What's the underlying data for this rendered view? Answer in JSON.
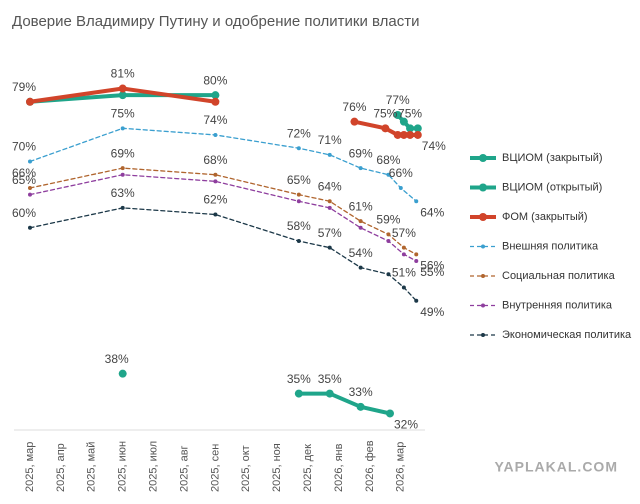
{
  "chart_data": {
    "type": "line",
    "title": "Доверие Владимиру Путину и одобрение политики власти",
    "watermark": "YAPLAKAL.COM",
    "categories": [
      "2025, мар",
      "2025, апр",
      "2025, май",
      "2025, июн",
      "2025, июл",
      "2025, авг",
      "2025, сен",
      "2025, окт",
      "2025, ноя",
      "2025, дек",
      "2026, янв",
      "2026, фев",
      "2026, мар"
    ],
    "ylim": [
      28,
      85
    ],
    "series": [
      {
        "name": "ВЦИОМ (закрытый)",
        "color": "#1fa58a",
        "style": "solid",
        "x": [
          0,
          3,
          6,
          null,
          11.9,
          12.1,
          12.3,
          12.55
        ],
        "values": [
          79,
          80,
          80,
          null,
          77,
          76,
          75,
          75
        ],
        "value_labels": [
          null,
          null,
          "80%",
          null,
          "77%",
          null,
          "75%",
          null
        ]
      },
      {
        "name": "ВЦИОМ (открытый)",
        "color": "#1fa58a",
        "style": "solid",
        "x": [
          3,
          null,
          8.7,
          9.7,
          10.7,
          11.65
        ],
        "values": [
          38,
          null,
          35,
          35,
          33,
          32
        ],
        "value_labels": [
          "38%",
          null,
          "35%",
          "35%",
          "33%",
          "32%"
        ]
      },
      {
        "name": "ФОМ (закрытый)",
        "color": "#d1442a",
        "style": "solid",
        "x": [
          0,
          3,
          6,
          null,
          10.5,
          11.5,
          11.9,
          12.1,
          12.3,
          12.55
        ],
        "values": [
          79,
          81,
          79,
          null,
          76,
          75,
          74,
          74,
          74,
          74
        ],
        "value_labels": [
          "79%",
          "81%",
          null,
          null,
          "76%",
          "75%",
          null,
          null,
          null,
          "74%"
        ]
      },
      {
        "name": "Внешняя политика",
        "color": "#3a9fcf",
        "style": "dashed",
        "x": [
          0,
          3,
          6,
          8.7,
          9.7,
          10.7,
          11.6,
          12,
          12.5
        ],
        "values": [
          70,
          75,
          74,
          72,
          71,
          69,
          68,
          66,
          64
        ],
        "value_labels": [
          "70%",
          "75%",
          "74%",
          "72%",
          "71%",
          "69%",
          "68%",
          "66%",
          "64%"
        ]
      },
      {
        "name": "Социальная политика",
        "color": "#b0652e",
        "style": "dashed",
        "x": [
          0,
          3,
          6,
          8.7,
          9.7,
          10.7,
          11.6,
          12.1,
          12.5
        ],
        "values": [
          66,
          69,
          68,
          65,
          64,
          61,
          59,
          57,
          56
        ],
        "value_labels": [
          "66%",
          "69%",
          "68%",
          "65%",
          "64%",
          "61%",
          "59%",
          "57%",
          "56%"
        ]
      },
      {
        "name": "Внутренняя политика",
        "color": "#8e3e9e",
        "style": "dashed",
        "x": [
          0,
          3,
          6,
          8.7,
          9.7,
          10.7,
          11.6,
          12.1,
          12.5
        ],
        "values": [
          65,
          68,
          67,
          64,
          63,
          60,
          58,
          56,
          55
        ],
        "value_labels": [
          "65%",
          null,
          null,
          null,
          null,
          null,
          null,
          null,
          "55%"
        ]
      },
      {
        "name": "Экономическая политика",
        "color": "#1c3848",
        "style": "dashed",
        "x": [
          0,
          3,
          6,
          8.7,
          9.7,
          10.7,
          11.6,
          12.1,
          12.5
        ],
        "values": [
          60,
          63,
          62,
          58,
          57,
          54,
          53,
          51,
          49
        ],
        "value_labels": [
          "60%",
          "63%",
          "62%",
          "58%",
          "57%",
          "54%",
          null,
          "51%",
          "49%"
        ]
      }
    ]
  }
}
